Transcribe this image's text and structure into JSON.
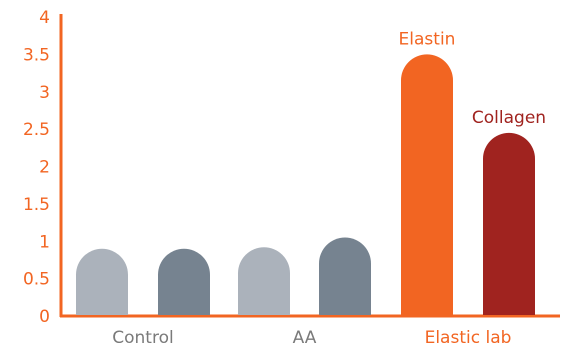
{
  "chart_data": {
    "type": "bar",
    "title": "",
    "xlabel": "",
    "ylabel": "",
    "ylim": [
      0,
      4
    ],
    "yticks": [
      "0",
      "0.5",
      "1",
      "1.5",
      "2",
      "2.5",
      "3",
      "3.5",
      "4"
    ],
    "grid": false,
    "axis_color": "#f26522",
    "groups": [
      {
        "label": "Control",
        "label_color": "#7a7a7a",
        "bars": 2
      },
      {
        "label": "AA",
        "label_color": "#7a7a7a",
        "bars": 2
      },
      {
        "label": "Elastic lab",
        "label_color": "#f26522",
        "bars": 2
      }
    ],
    "bars": [
      {
        "value": 0.9,
        "color": "#abb2bb",
        "label": ""
      },
      {
        "value": 0.9,
        "color": "#768390",
        "label": ""
      },
      {
        "value": 0.92,
        "color": "#abb2bb",
        "label": ""
      },
      {
        "value": 1.05,
        "color": "#768390",
        "label": ""
      },
      {
        "value": 3.5,
        "color": "#f26522",
        "label": "Elastin"
      },
      {
        "value": 2.45,
        "color": "#a0231f",
        "label": "Collagen"
      }
    ]
  }
}
